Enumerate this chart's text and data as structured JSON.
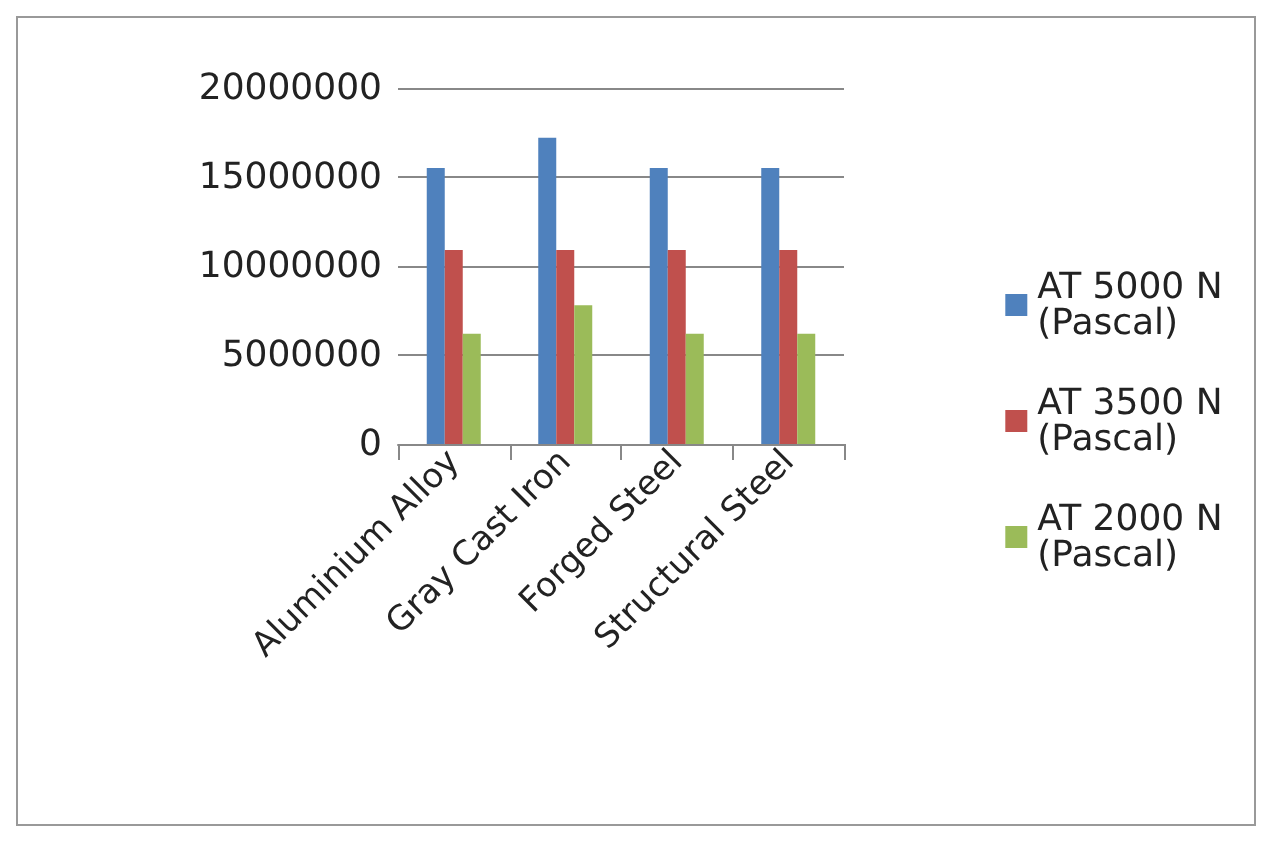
{
  "chart_data": {
    "type": "bar",
    "categories": [
      "Aluminium Alloy",
      "Gray Cast Iron",
      "Forged Steel",
      "Structural Steel"
    ],
    "series": [
      {
        "name": "AT 5000 N (Pascal)",
        "color": "#4f81bd",
        "values": [
          15500000,
          17200000,
          15500000,
          15500000
        ]
      },
      {
        "name": "AT 3500 N (Pascal)",
        "color": "#c0504d",
        "values": [
          10900000,
          10900000,
          10900000,
          10900000
        ]
      },
      {
        "name": "AT 2000 N (Pascal)",
        "color": "#9bbb59",
        "values": [
          6200000,
          7800000,
          6200000,
          6200000
        ]
      }
    ],
    "ylim": [
      0,
      20000000
    ],
    "yticks": [
      0,
      5000000,
      10000000,
      15000000,
      20000000
    ],
    "grid": "y",
    "legend": "right"
  }
}
